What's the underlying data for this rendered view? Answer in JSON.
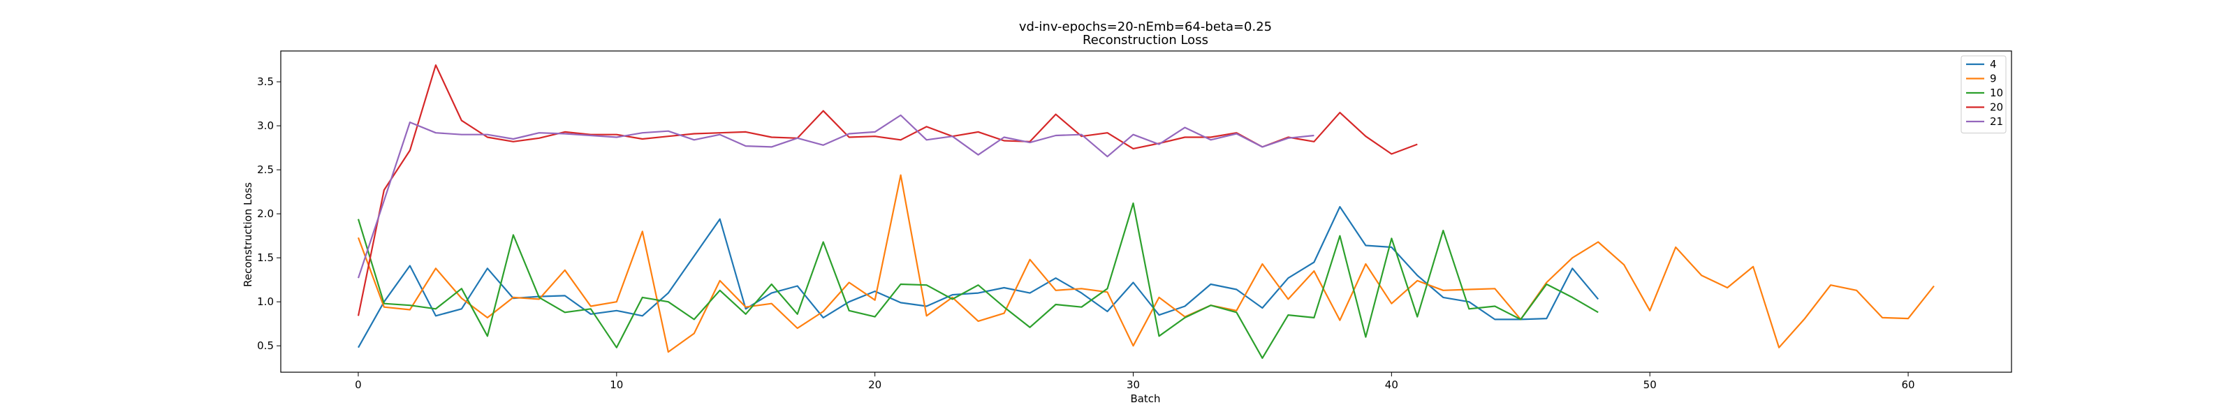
{
  "chart_data": {
    "type": "line",
    "title": "vd-inv-epochs=20-nEmb=64-beta=0.25",
    "subtitle": "Reconstruction Loss",
    "xlabel": "Batch",
    "ylabel": "Reconstruction Loss",
    "xlim": [
      -3,
      64
    ],
    "ylim": [
      0.2,
      3.85
    ],
    "xticks": [
      0,
      10,
      20,
      30,
      40,
      50,
      60
    ],
    "yticks": [
      0.5,
      1.0,
      1.5,
      2.0,
      2.5,
      3.0,
      3.5
    ],
    "ytick_labels": [
      "0.5",
      "1.0",
      "1.5",
      "2.0",
      "2.5",
      "3.0",
      "3.5"
    ],
    "grid": false,
    "legend_position": "top-right",
    "series": [
      {
        "name": "4",
        "color": "#1f77b4",
        "values": [
          0.48,
          1.0,
          1.41,
          0.84,
          0.92,
          1.38,
          1.04,
          1.06,
          1.07,
          0.86,
          0.9,
          0.84,
          1.1,
          1.52,
          1.94,
          0.92,
          1.1,
          1.18,
          0.82,
          1.0,
          1.12,
          0.99,
          0.95,
          1.08,
          1.1,
          1.16,
          1.1,
          1.27,
          1.1,
          0.89,
          1.22,
          0.85,
          0.95,
          1.2,
          1.14,
          0.93,
          1.27,
          1.45,
          2.08,
          1.64,
          1.62,
          1.3,
          1.05,
          1.0,
          0.8,
          0.8,
          0.81,
          1.38,
          1.03
        ]
      },
      {
        "name": "9",
        "color": "#ff7f0e",
        "values": [
          1.73,
          0.94,
          0.91,
          1.38,
          1.04,
          0.82,
          1.05,
          1.03,
          1.36,
          0.95,
          1.0,
          1.8,
          0.43,
          0.64,
          1.24,
          0.94,
          0.98,
          0.7,
          0.89,
          1.22,
          1.02,
          2.44,
          0.84,
          1.05,
          0.78,
          0.87,
          1.48,
          1.13,
          1.15,
          1.11,
          0.5,
          1.05,
          0.83,
          0.96,
          0.9,
          1.43,
          1.03,
          1.35,
          0.79,
          1.43,
          0.98,
          1.24,
          1.13,
          1.14,
          1.15,
          0.8,
          1.22,
          1.5,
          1.68,
          1.42,
          0.9,
          1.62,
          1.3,
          1.16,
          1.4,
          0.48,
          0.81,
          1.19,
          1.13,
          0.82,
          0.81,
          1.18
        ]
      },
      {
        "name": "10",
        "color": "#2ca02c",
        "values": [
          1.94,
          0.98,
          0.96,
          0.92,
          1.15,
          0.61,
          1.76,
          1.05,
          0.88,
          0.92,
          0.48,
          1.05,
          1.0,
          0.8,
          1.13,
          0.86,
          1.2,
          0.86,
          1.68,
          0.9,
          0.83,
          1.2,
          1.19,
          1.03,
          1.19,
          0.94,
          0.71,
          0.97,
          0.94,
          1.15,
          2.12,
          0.61,
          0.82,
          0.96,
          0.88,
          0.36,
          0.85,
          0.82,
          1.75,
          0.6,
          1.72,
          0.83,
          1.81,
          0.92,
          0.95,
          0.8,
          1.2,
          1.05,
          0.88
        ]
      },
      {
        "name": "20",
        "color": "#d62728",
        "values": [
          0.84,
          2.27,
          2.72,
          3.69,
          3.06,
          2.87,
          2.82,
          2.86,
          2.93,
          2.9,
          2.9,
          2.85,
          2.88,
          2.91,
          2.92,
          2.93,
          2.87,
          2.86,
          3.17,
          2.87,
          2.88,
          2.84,
          2.99,
          2.88,
          2.93,
          2.83,
          2.82,
          3.13,
          2.88,
          2.92,
          2.74,
          2.8,
          2.87,
          2.87,
          2.92,
          2.76,
          2.87,
          2.82,
          3.15,
          2.88,
          2.68,
          2.79
        ]
      },
      {
        "name": "21",
        "color": "#9467bd",
        "values": [
          1.27,
          2.15,
          3.04,
          2.92,
          2.9,
          2.9,
          2.85,
          2.92,
          2.91,
          2.89,
          2.87,
          2.92,
          2.94,
          2.84,
          2.9,
          2.77,
          2.76,
          2.86,
          2.78,
          2.91,
          2.93,
          3.12,
          2.84,
          2.88,
          2.67,
          2.87,
          2.81,
          2.89,
          2.9,
          2.65,
          2.9,
          2.79,
          2.98,
          2.84,
          2.91,
          2.76,
          2.86,
          2.89
        ]
      }
    ]
  }
}
